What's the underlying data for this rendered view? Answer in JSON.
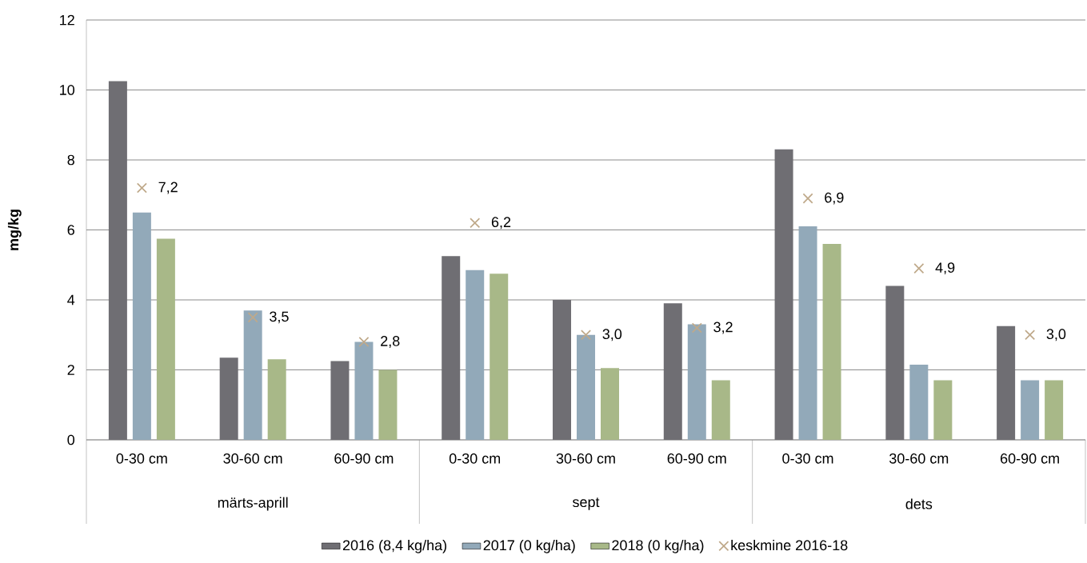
{
  "chart_data": {
    "type": "bar",
    "ylabel": "mg/kg",
    "categories": [
      "0-30 cm",
      "30-60 cm",
      "60-90 cm",
      "0-30 cm",
      "30-60 cm",
      "60-90 cm",
      "0-30 cm",
      "30-60 cm",
      "60-90 cm"
    ],
    "annotations": [
      "märts-aprill",
      "sept",
      "dets"
    ],
    "series": [
      {
        "name": "2016 (8,4 kg/ha)",
        "color": "#6f6e73",
        "values": [
          10.25,
          2.35,
          2.25,
          5.25,
          4.0,
          3.9,
          8.3,
          4.4,
          3.25
        ]
      },
      {
        "name": "2017 (0 kg/ha)",
        "color": "#92a9b9",
        "values": [
          6.5,
          3.7,
          2.8,
          4.85,
          3.0,
          3.3,
          6.1,
          2.15,
          1.7
        ]
      },
      {
        "name": "2018 (0 kg/ha)",
        "color": "#a8b888",
        "values": [
          5.75,
          2.3,
          2.0,
          4.75,
          2.05,
          1.7,
          5.6,
          1.7,
          1.7
        ]
      },
      {
        "name": "keskmine 2016-18",
        "type": "scatter",
        "marker": "cross",
        "color": "#bfa98a",
        "values": [
          7.2,
          3.5,
          2.8,
          6.2,
          3.0,
          3.2,
          6.9,
          4.9,
          3.0
        ],
        "value_labels": [
          "7,2",
          "3,5",
          "2,8",
          "6,2",
          "3,0",
          "3,2",
          "6,9",
          "4,9",
          "3,0"
        ]
      }
    ],
    "ylim": [
      0,
      12
    ],
    "yticks": [
      0,
      2,
      4,
      6,
      8,
      10,
      12
    ],
    "grid": "y",
    "legend": "bottom"
  }
}
